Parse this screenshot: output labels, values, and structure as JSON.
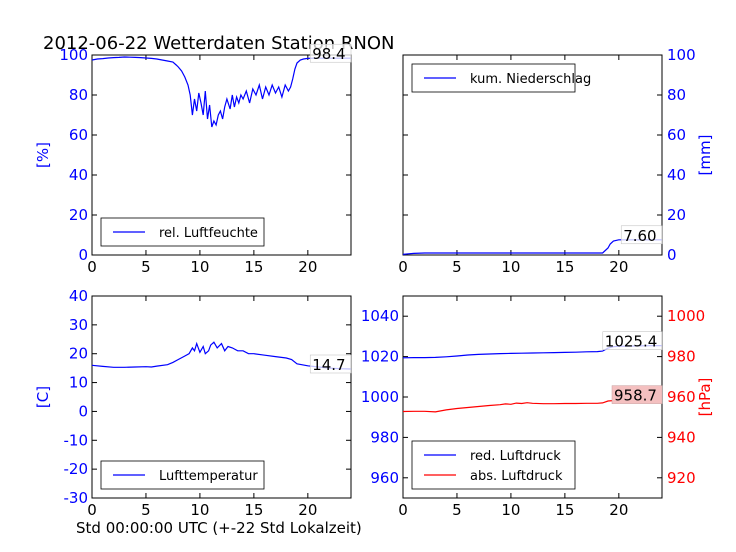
{
  "figure": {
    "title": "2012-06-22 Wetterdaten Station RNON",
    "xlabel": "Std 00:00:00 UTC (+-22 Std Lokalzeit)",
    "colors": {
      "blue": "#0000ff",
      "red": "#ff0000",
      "axis": "#000000",
      "label_bg": "#f4c0c0"
    }
  },
  "chart_data": [
    {
      "id": "humidity",
      "type": "line",
      "title": "",
      "xlabel": "",
      "ylabel": "[%]",
      "ylabel_side": "left",
      "ylabel_color": "#0000ff",
      "xlim": [
        0,
        24
      ],
      "ylim": [
        0,
        100
      ],
      "xticks": [
        0,
        5,
        10,
        15,
        20
      ],
      "yticks": [
        0,
        20,
        40,
        60,
        80,
        100
      ],
      "ytick_side": "left",
      "ytick_color": "#0000ff",
      "legend": {
        "placement": "lower-left",
        "entries": [
          {
            "label": "rel. Luftfeuchte",
            "color": "#0000ff"
          }
        ]
      },
      "annotation": {
        "text": "98.4",
        "x": 24,
        "y": 98.4,
        "highlight": false
      },
      "series": [
        {
          "name": "rel. Luftfeuchte",
          "color": "#0000ff",
          "x": [
            0,
            0.5,
            1,
            1.5,
            2,
            2.5,
            3,
            3.5,
            4,
            4.5,
            5,
            5.5,
            6,
            6.5,
            7,
            7.5,
            7.8,
            8,
            8.3,
            8.6,
            8.9,
            9.1,
            9.3,
            9.5,
            9.7,
            9.9,
            10.1,
            10.3,
            10.5,
            10.7,
            10.9,
            11.1,
            11.3,
            11.5,
            11.7,
            11.9,
            12.1,
            12.3,
            12.5,
            12.8,
            13,
            13.2,
            13.4,
            13.6,
            13.8,
            14,
            14.3,
            14.6,
            14.9,
            15.2,
            15.5,
            15.8,
            16.1,
            16.4,
            16.7,
            17,
            17.3,
            17.6,
            17.9,
            18.2,
            18.4,
            18.6,
            18.8,
            19,
            19.3,
            19.6,
            20,
            20.5,
            21,
            22,
            23,
            24
          ],
          "y": [
            97.5,
            98,
            98.2,
            98.5,
            98.7,
            98.8,
            99,
            98.9,
            98.8,
            98.7,
            98.5,
            98.3,
            98,
            97.5,
            97,
            96.5,
            95,
            94,
            92,
            89,
            85,
            80,
            70,
            78,
            72,
            81,
            76,
            70,
            82,
            68,
            75,
            64,
            67,
            65,
            70,
            72,
            68,
            74,
            78,
            73,
            80,
            74,
            79,
            76,
            80,
            78,
            82,
            76,
            83,
            80,
            85,
            78,
            84,
            80,
            85,
            81,
            84,
            79,
            85,
            82,
            84,
            88,
            93,
            96,
            97.5,
            98,
            98.3,
            98.4,
            98.4,
            98.4,
            98.4,
            98.4
          ]
        }
      ]
    },
    {
      "id": "precip",
      "type": "line",
      "title": "",
      "xlabel": "",
      "ylabel": "[mm]",
      "ylabel_side": "right",
      "ylabel_color": "#0000ff",
      "xlim": [
        0,
        24
      ],
      "ylim": [
        0,
        100
      ],
      "xticks": [
        0,
        5,
        10,
        15,
        20
      ],
      "yticks": [
        0,
        20,
        40,
        60,
        80,
        100
      ],
      "ytick_side": "right",
      "ytick_color": "#0000ff",
      "legend": {
        "placement": "upper-left",
        "entries": [
          {
            "label": "kum. Niederschlag",
            "color": "#0000ff"
          }
        ]
      },
      "annotation": {
        "text": "7.60",
        "x": 24,
        "y": 7.6,
        "highlight": false
      },
      "series": [
        {
          "name": "kum. Niederschlag",
          "color": "#0000ff",
          "x": [
            0,
            0.5,
            1,
            2,
            5,
            10,
            15,
            18.5,
            19,
            19.2,
            19.5,
            20,
            24
          ],
          "y": [
            0.3,
            0.6,
            0.8,
            1.0,
            1.0,
            1.0,
            1.0,
            1.0,
            3.5,
            5.5,
            7.0,
            7.6,
            7.6
          ]
        }
      ]
    },
    {
      "id": "temperature",
      "type": "line",
      "title": "",
      "xlabel": "",
      "ylabel": "[C]",
      "ylabel_side": "left",
      "ylabel_color": "#0000ff",
      "xlim": [
        0,
        24
      ],
      "ylim": [
        -30,
        40
      ],
      "xticks": [
        0,
        5,
        10,
        15,
        20
      ],
      "yticks": [
        -30,
        -20,
        -10,
        0,
        10,
        20,
        30,
        40
      ],
      "ytick_side": "left",
      "ytick_color": "#0000ff",
      "legend": {
        "placement": "lower-left",
        "entries": [
          {
            "label": "Lufttemperatur",
            "color": "#0000ff"
          }
        ]
      },
      "annotation": {
        "text": "14.7",
        "x": 24,
        "y": 14.7,
        "highlight": false
      },
      "series": [
        {
          "name": "Lufttemperatur",
          "color": "#0000ff",
          "x": [
            0,
            1,
            2,
            3,
            4,
            5,
            5.5,
            6,
            7,
            7.5,
            8,
            8.5,
            9,
            9.3,
            9.5,
            9.7,
            10,
            10.3,
            10.5,
            10.8,
            11,
            11.3,
            11.6,
            12,
            12.3,
            12.6,
            13,
            13.5,
            14,
            14.5,
            15,
            16,
            17,
            18,
            18.5,
            19,
            20,
            21,
            22,
            23,
            24
          ],
          "y": [
            16,
            15.6,
            15.3,
            15.3,
            15.4,
            15.5,
            15.4,
            15.7,
            16.2,
            17,
            18,
            19,
            20,
            22,
            21,
            23.5,
            20.5,
            22.5,
            20,
            21,
            23,
            24,
            22,
            23.5,
            21,
            22.5,
            22,
            21,
            21,
            20,
            20,
            19.5,
            19,
            18.5,
            18,
            16.5,
            15.8,
            15.4,
            15,
            14.8,
            14.7
          ]
        }
      ]
    },
    {
      "id": "pressure",
      "type": "line",
      "title": "",
      "xlabel": "",
      "ylabel": "[hPa]",
      "ylabel_side": "right",
      "ylabel_color": "#ff0000",
      "xlim": [
        0,
        24
      ],
      "ylim": [
        950,
        1050
      ],
      "ylim_right": [
        910,
        1010
      ],
      "xticks": [
        0,
        5,
        10,
        15,
        20
      ],
      "yticks": [
        960,
        980,
        1000,
        1020,
        1040
      ],
      "ytick_side": "left",
      "ytick_color": "#0000ff",
      "yticks_right": [
        920,
        940,
        960,
        980,
        1000
      ],
      "ytick_right_color": "#ff0000",
      "legend": {
        "placement": "lower-left",
        "entries": [
          {
            "label": "red. Luftdruck",
            "color": "#0000ff"
          },
          {
            "label": "abs. Luftdruck",
            "color": "#ff0000"
          }
        ]
      },
      "annotations": [
        {
          "text": "1025.4",
          "x": 24,
          "y": 1025.4,
          "axis": "left",
          "highlight": false
        },
        {
          "text": "958.7",
          "x": 24,
          "y": 958.7,
          "axis": "right",
          "highlight": true
        }
      ],
      "series": [
        {
          "name": "red. Luftdruck",
          "color": "#0000ff",
          "axis": "left",
          "x": [
            0,
            1,
            2,
            3,
            4,
            5,
            6,
            7,
            8,
            9,
            10,
            11,
            12,
            13,
            14,
            15,
            16,
            17,
            18,
            18.5,
            19,
            19.5,
            20,
            21,
            22,
            23,
            24
          ],
          "y": [
            1019.4,
            1019.5,
            1019.5,
            1019.6,
            1019.9,
            1020.3,
            1020.8,
            1021.1,
            1021.3,
            1021.5,
            1021.6,
            1021.7,
            1021.8,
            1021.9,
            1022.0,
            1022.1,
            1022.2,
            1022.4,
            1022.5,
            1022.7,
            1024.2,
            1024.9,
            1025.1,
            1025.2,
            1025.3,
            1025.4,
            1025.4
          ]
        },
        {
          "name": "abs. Luftdruck",
          "color": "#ff0000",
          "axis": "right",
          "x": [
            0,
            1,
            2,
            3,
            4,
            5,
            6,
            7,
            8,
            9,
            9.5,
            10,
            10.5,
            11,
            11.5,
            12,
            13,
            14,
            15,
            16,
            17,
            18,
            18.5,
            19,
            20,
            21,
            22,
            23,
            24
          ],
          "y": [
            952.8,
            952.9,
            952.9,
            952.6,
            953.6,
            954.3,
            954.8,
            955.3,
            955.8,
            956.2,
            956.6,
            956.4,
            957.0,
            956.8,
            957.2,
            956.9,
            956.7,
            956.7,
            956.8,
            956.8,
            956.9,
            956.9,
            957.1,
            958.0,
            958.4,
            958.5,
            958.6,
            958.7,
            958.7
          ]
        }
      ]
    }
  ]
}
